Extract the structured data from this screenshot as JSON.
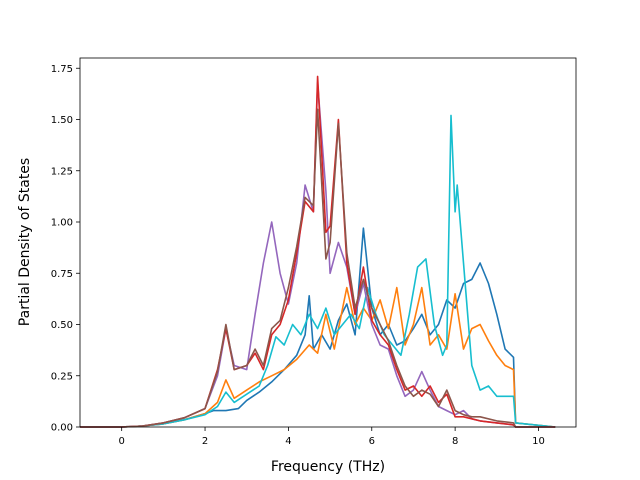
{
  "chart_data": {
    "type": "line",
    "title": "",
    "xlabel": "Frequency (THz)",
    "ylabel": "Partial Density of States",
    "xlim": [
      -1.0,
      10.9
    ],
    "ylim": [
      0.0,
      1.8
    ],
    "xticks": [
      0,
      2,
      4,
      6,
      8,
      10
    ],
    "yticks": [
      0.0,
      0.25,
      0.5,
      0.75,
      1.0,
      1.25,
      1.5,
      1.75
    ],
    "xtick_labels": [
      "0",
      "2",
      "4",
      "6",
      "8",
      "10"
    ],
    "ytick_labels": [
      "0.00",
      "0.25",
      "0.50",
      "0.75",
      "1.00",
      "1.25",
      "1.50",
      "1.75"
    ],
    "grid": false,
    "legend": "none",
    "series": [
      {
        "color": "#1f77b4",
        "points": [
          [
            -1.0,
            0
          ],
          [
            0,
            0
          ],
          [
            0.5,
            0.005
          ],
          [
            1.0,
            0.015
          ],
          [
            1.5,
            0.035
          ],
          [
            2.0,
            0.065
          ],
          [
            2.2,
            0.08
          ],
          [
            2.5,
            0.08
          ],
          [
            2.8,
            0.09
          ],
          [
            3.0,
            0.13
          ],
          [
            3.3,
            0.17
          ],
          [
            3.6,
            0.22
          ],
          [
            3.9,
            0.28
          ],
          [
            4.2,
            0.35
          ],
          [
            4.4,
            0.45
          ],
          [
            4.5,
            0.64
          ],
          [
            4.6,
            0.38
          ],
          [
            4.8,
            0.45
          ],
          [
            5.0,
            0.38
          ],
          [
            5.2,
            0.52
          ],
          [
            5.4,
            0.6
          ],
          [
            5.6,
            0.45
          ],
          [
            5.8,
            0.97
          ],
          [
            6.0,
            0.58
          ],
          [
            6.2,
            0.45
          ],
          [
            6.4,
            0.5
          ],
          [
            6.6,
            0.4
          ],
          [
            6.8,
            0.42
          ],
          [
            7.0,
            0.48
          ],
          [
            7.2,
            0.55
          ],
          [
            7.4,
            0.45
          ],
          [
            7.6,
            0.5
          ],
          [
            7.8,
            0.62
          ],
          [
            8.0,
            0.58
          ],
          [
            8.2,
            0.7
          ],
          [
            8.4,
            0.72
          ],
          [
            8.6,
            0.8
          ],
          [
            8.8,
            0.7
          ],
          [
            9.0,
            0.55
          ],
          [
            9.2,
            0.38
          ],
          [
            9.4,
            0.34
          ],
          [
            9.45,
            0.02
          ],
          [
            10.4,
            0
          ]
        ]
      },
      {
        "color": "#ff7f0e",
        "points": [
          [
            -1.0,
            0
          ],
          [
            0,
            0
          ],
          [
            0.5,
            0.005
          ],
          [
            1.0,
            0.015
          ],
          [
            1.5,
            0.035
          ],
          [
            2.0,
            0.065
          ],
          [
            2.3,
            0.12
          ],
          [
            2.5,
            0.23
          ],
          [
            2.7,
            0.14
          ],
          [
            3.0,
            0.18
          ],
          [
            3.3,
            0.22
          ],
          [
            3.6,
            0.25
          ],
          [
            3.9,
            0.28
          ],
          [
            4.2,
            0.33
          ],
          [
            4.5,
            0.4
          ],
          [
            4.7,
            0.36
          ],
          [
            4.9,
            0.55
          ],
          [
            5.1,
            0.38
          ],
          [
            5.4,
            0.68
          ],
          [
            5.6,
            0.5
          ],
          [
            5.8,
            0.58
          ],
          [
            6.0,
            0.52
          ],
          [
            6.2,
            0.62
          ],
          [
            6.4,
            0.48
          ],
          [
            6.6,
            0.68
          ],
          [
            6.8,
            0.4
          ],
          [
            7.0,
            0.5
          ],
          [
            7.2,
            0.68
          ],
          [
            7.4,
            0.4
          ],
          [
            7.6,
            0.45
          ],
          [
            7.8,
            0.38
          ],
          [
            8.0,
            0.65
          ],
          [
            8.2,
            0.38
          ],
          [
            8.4,
            0.48
          ],
          [
            8.6,
            0.5
          ],
          [
            8.8,
            0.42
          ],
          [
            9.0,
            0.35
          ],
          [
            9.2,
            0.3
          ],
          [
            9.4,
            0.28
          ],
          [
            9.45,
            0.02
          ],
          [
            10.4,
            0
          ]
        ]
      },
      {
        "color": "#17becf",
        "points": [
          [
            -1.0,
            0
          ],
          [
            0,
            0
          ],
          [
            0.5,
            0.005
          ],
          [
            1.0,
            0.015
          ],
          [
            1.5,
            0.035
          ],
          [
            2.0,
            0.06
          ],
          [
            2.3,
            0.1
          ],
          [
            2.5,
            0.17
          ],
          [
            2.7,
            0.12
          ],
          [
            3.0,
            0.16
          ],
          [
            3.3,
            0.2
          ],
          [
            3.5,
            0.3
          ],
          [
            3.7,
            0.44
          ],
          [
            3.9,
            0.4
          ],
          [
            4.1,
            0.5
          ],
          [
            4.3,
            0.45
          ],
          [
            4.5,
            0.55
          ],
          [
            4.7,
            0.48
          ],
          [
            4.9,
            0.58
          ],
          [
            5.1,
            0.45
          ],
          [
            5.3,
            0.5
          ],
          [
            5.5,
            0.55
          ],
          [
            5.7,
            0.48
          ],
          [
            5.9,
            0.68
          ],
          [
            6.1,
            0.55
          ],
          [
            6.3,
            0.45
          ],
          [
            6.5,
            0.4
          ],
          [
            6.7,
            0.35
          ],
          [
            6.9,
            0.55
          ],
          [
            7.1,
            0.78
          ],
          [
            7.3,
            0.82
          ],
          [
            7.5,
            0.5
          ],
          [
            7.7,
            0.35
          ],
          [
            7.8,
            0.4
          ],
          [
            7.9,
            1.52
          ],
          [
            8.0,
            1.05
          ],
          [
            8.05,
            1.18
          ],
          [
            8.2,
            0.8
          ],
          [
            8.4,
            0.3
          ],
          [
            8.6,
            0.18
          ],
          [
            8.8,
            0.2
          ],
          [
            9.0,
            0.15
          ],
          [
            9.2,
            0.15
          ],
          [
            9.4,
            0.15
          ],
          [
            9.45,
            0.02
          ],
          [
            10.4,
            0
          ]
        ]
      },
      {
        "color": "#9467bd",
        "points": [
          [
            -1.0,
            0
          ],
          [
            0,
            0
          ],
          [
            0.5,
            0.005
          ],
          [
            1.0,
            0.02
          ],
          [
            1.5,
            0.045
          ],
          [
            2.0,
            0.09
          ],
          [
            2.3,
            0.25
          ],
          [
            2.5,
            0.48
          ],
          [
            2.7,
            0.3
          ],
          [
            3.0,
            0.28
          ],
          [
            3.2,
            0.55
          ],
          [
            3.4,
            0.8
          ],
          [
            3.6,
            1.0
          ],
          [
            3.8,
            0.75
          ],
          [
            4.0,
            0.6
          ],
          [
            4.2,
            0.8
          ],
          [
            4.4,
            1.18
          ],
          [
            4.6,
            1.05
          ],
          [
            4.7,
            1.68
          ],
          [
            4.9,
            1.15
          ],
          [
            5.0,
            0.75
          ],
          [
            5.2,
            0.9
          ],
          [
            5.4,
            0.78
          ],
          [
            5.6,
            0.55
          ],
          [
            5.8,
            0.7
          ],
          [
            6.0,
            0.5
          ],
          [
            6.2,
            0.4
          ],
          [
            6.4,
            0.38
          ],
          [
            6.6,
            0.25
          ],
          [
            6.8,
            0.15
          ],
          [
            7.0,
            0.18
          ],
          [
            7.2,
            0.27
          ],
          [
            7.4,
            0.18
          ],
          [
            7.6,
            0.1
          ],
          [
            7.8,
            0.08
          ],
          [
            8.0,
            0.06
          ],
          [
            8.2,
            0.08
          ],
          [
            8.4,
            0.04
          ],
          [
            8.6,
            0.03
          ],
          [
            9.0,
            0.02
          ],
          [
            9.4,
            0.01
          ],
          [
            9.45,
            0
          ],
          [
            10.4,
            0
          ]
        ]
      },
      {
        "color": "#d62728",
        "points": [
          [
            -1.0,
            0
          ],
          [
            0,
            0
          ],
          [
            0.5,
            0.005
          ],
          [
            1.0,
            0.02
          ],
          [
            1.5,
            0.045
          ],
          [
            2.0,
            0.09
          ],
          [
            2.3,
            0.28
          ],
          [
            2.5,
            0.48
          ],
          [
            2.7,
            0.28
          ],
          [
            3.0,
            0.3
          ],
          [
            3.2,
            0.36
          ],
          [
            3.4,
            0.28
          ],
          [
            3.6,
            0.45
          ],
          [
            3.8,
            0.5
          ],
          [
            4.0,
            0.62
          ],
          [
            4.2,
            0.85
          ],
          [
            4.4,
            1.1
          ],
          [
            4.6,
            1.05
          ],
          [
            4.7,
            1.71
          ],
          [
            4.9,
            0.95
          ],
          [
            5.0,
            0.98
          ],
          [
            5.2,
            1.5
          ],
          [
            5.4,
            0.8
          ],
          [
            5.6,
            0.55
          ],
          [
            5.8,
            0.78
          ],
          [
            6.0,
            0.52
          ],
          [
            6.2,
            0.45
          ],
          [
            6.4,
            0.4
          ],
          [
            6.6,
            0.28
          ],
          [
            6.8,
            0.18
          ],
          [
            7.0,
            0.2
          ],
          [
            7.2,
            0.15
          ],
          [
            7.4,
            0.2
          ],
          [
            7.6,
            0.12
          ],
          [
            7.8,
            0.16
          ],
          [
            8.0,
            0.05
          ],
          [
            8.2,
            0.05
          ],
          [
            8.4,
            0.04
          ],
          [
            8.6,
            0.03
          ],
          [
            9.0,
            0.02
          ],
          [
            9.4,
            0.01
          ],
          [
            9.45,
            0
          ],
          [
            10.4,
            0
          ]
        ]
      },
      {
        "color": "#8c564b",
        "points": [
          [
            -1.0,
            0
          ],
          [
            0,
            0
          ],
          [
            0.5,
            0.005
          ],
          [
            1.0,
            0.02
          ],
          [
            1.5,
            0.045
          ],
          [
            2.0,
            0.09
          ],
          [
            2.3,
            0.27
          ],
          [
            2.5,
            0.5
          ],
          [
            2.7,
            0.28
          ],
          [
            3.0,
            0.3
          ],
          [
            3.2,
            0.38
          ],
          [
            3.4,
            0.3
          ],
          [
            3.6,
            0.48
          ],
          [
            3.8,
            0.52
          ],
          [
            4.0,
            0.68
          ],
          [
            4.2,
            0.88
          ],
          [
            4.4,
            1.12
          ],
          [
            4.6,
            1.08
          ],
          [
            4.7,
            1.55
          ],
          [
            4.9,
            0.82
          ],
          [
            5.0,
            0.9
          ],
          [
            5.2,
            1.48
          ],
          [
            5.4,
            0.85
          ],
          [
            5.6,
            0.58
          ],
          [
            5.8,
            0.72
          ],
          [
            6.0,
            0.58
          ],
          [
            6.2,
            0.5
          ],
          [
            6.4,
            0.42
          ],
          [
            6.6,
            0.3
          ],
          [
            6.8,
            0.2
          ],
          [
            7.0,
            0.15
          ],
          [
            7.2,
            0.18
          ],
          [
            7.4,
            0.16
          ],
          [
            7.6,
            0.1
          ],
          [
            7.8,
            0.18
          ],
          [
            8.0,
            0.08
          ],
          [
            8.2,
            0.06
          ],
          [
            8.4,
            0.05
          ],
          [
            8.6,
            0.05
          ],
          [
            9.0,
            0.03
          ],
          [
            9.4,
            0.02
          ],
          [
            9.45,
            0
          ],
          [
            10.4,
            0
          ]
        ]
      }
    ]
  }
}
